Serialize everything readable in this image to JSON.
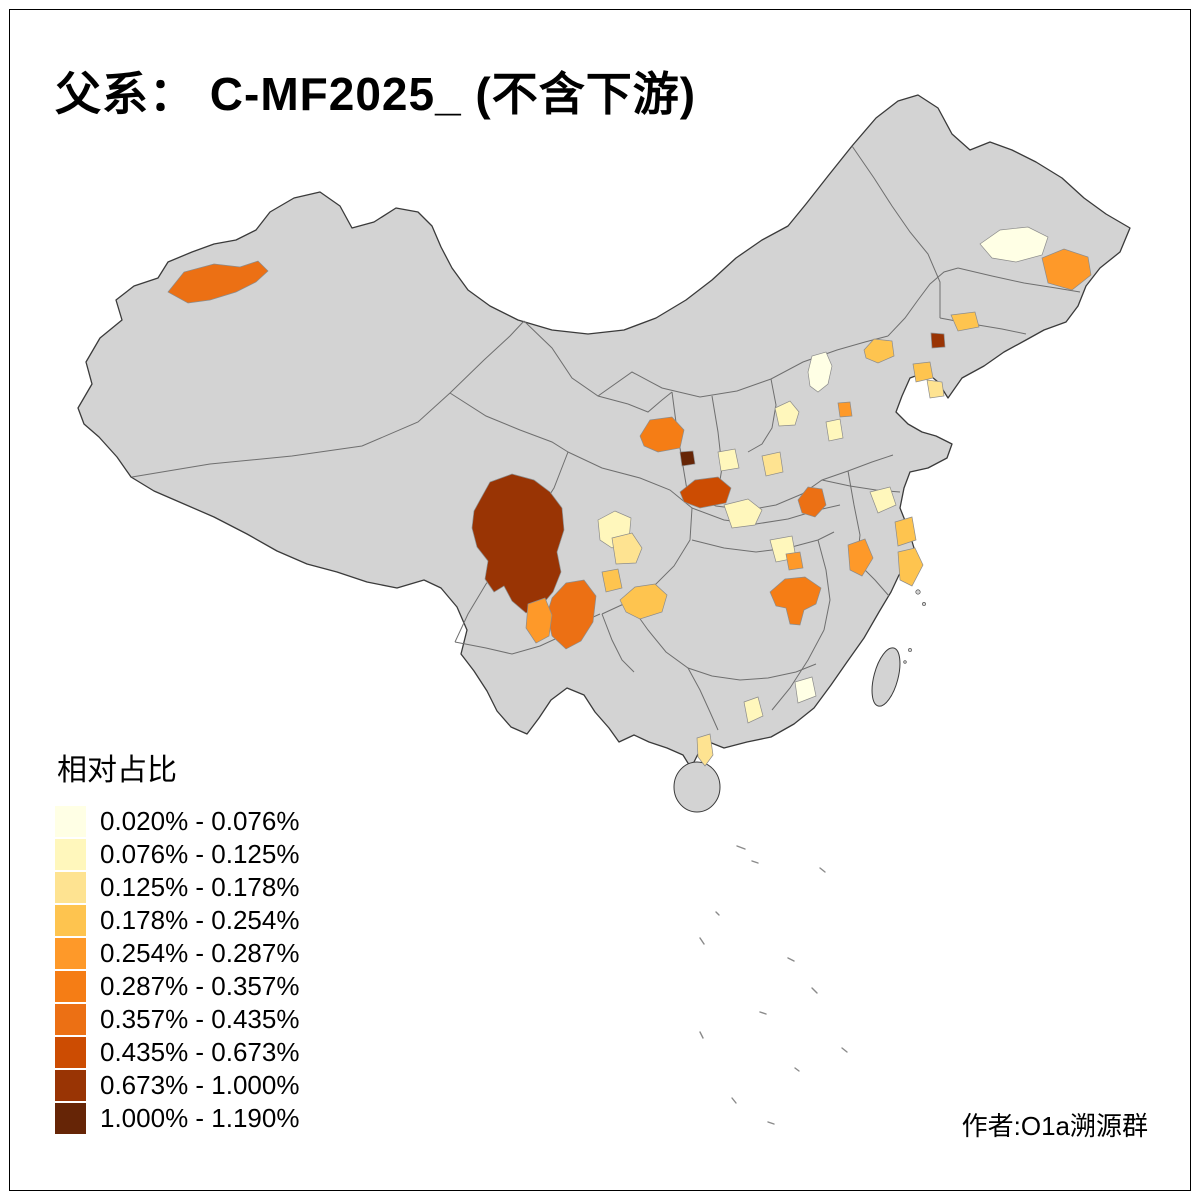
{
  "title": "父系： C-MF2025_ (不含下游)",
  "author": "作者:O1a溯源群",
  "legend": {
    "title": "相对占比",
    "items": [
      {
        "range": "0.020% - 0.076%",
        "color": "#FFFFE5"
      },
      {
        "range": "0.076% - 0.125%",
        "color": "#FFF7BC"
      },
      {
        "range": "0.125% - 0.178%",
        "color": "#FEE391"
      },
      {
        "range": "0.178% - 0.254%",
        "color": "#FEC44F"
      },
      {
        "range": "0.254% - 0.287%",
        "color": "#FE9929"
      },
      {
        "range": "0.287% - 0.357%",
        "color": "#F57D15"
      },
      {
        "range": "0.357% - 0.435%",
        "color": "#EC7014"
      },
      {
        "range": "0.435% - 0.673%",
        "color": "#CC4C02"
      },
      {
        "range": "0.673% - 1.000%",
        "color": "#993404"
      },
      {
        "range": "1.000% - 1.190%",
        "color": "#662506"
      }
    ]
  },
  "map": {
    "background": "#FFFFFF",
    "land_color": "#D3D3D3",
    "country_border_color": "#3A3A3A",
    "province_border_color": "#6F6F6F",
    "region_border_color": "#8C8C8C",
    "islet_color": "#8A8A8A",
    "regions": [
      {
        "id": "r01",
        "bin": 7
      },
      {
        "id": "r02",
        "bin": 1
      },
      {
        "id": "r03",
        "bin": 5
      },
      {
        "id": "r04",
        "bin": 4
      },
      {
        "id": "r05",
        "bin": 9
      },
      {
        "id": "r06",
        "bin": 4
      },
      {
        "id": "r07",
        "bin": 4
      },
      {
        "id": "r08",
        "bin": 3
      },
      {
        "id": "r09",
        "bin": 1
      },
      {
        "id": "r10",
        "bin": 2
      },
      {
        "id": "r11",
        "bin": 2
      },
      {
        "id": "r12",
        "bin": 5
      },
      {
        "id": "r13",
        "bin": 6
      },
      {
        "id": "r14",
        "bin": 10
      },
      {
        "id": "r15",
        "bin": 2
      },
      {
        "id": "r16",
        "bin": 8
      },
      {
        "id": "r17",
        "bin": 2
      },
      {
        "id": "r18",
        "bin": 3
      },
      {
        "id": "r19",
        "bin": 7
      },
      {
        "id": "r20",
        "bin": 2
      },
      {
        "id": "r21",
        "bin": 4
      },
      {
        "id": "r22",
        "bin": 5
      },
      {
        "id": "r23",
        "bin": 4
      },
      {
        "id": "r24",
        "bin": 2
      },
      {
        "id": "r25",
        "bin": 5
      },
      {
        "id": "r26",
        "bin": 9
      },
      {
        "id": "r27",
        "bin": 7
      },
      {
        "id": "r28",
        "bin": 5
      },
      {
        "id": "r29",
        "bin": 2
      },
      {
        "id": "r30",
        "bin": 3
      },
      {
        "id": "r31",
        "bin": 4
      },
      {
        "id": "r32",
        "bin": 4
      },
      {
        "id": "r33",
        "bin": 6
      },
      {
        "id": "r34",
        "bin": 1
      },
      {
        "id": "r35",
        "bin": 2
      },
      {
        "id": "r36",
        "bin": 3
      }
    ]
  }
}
